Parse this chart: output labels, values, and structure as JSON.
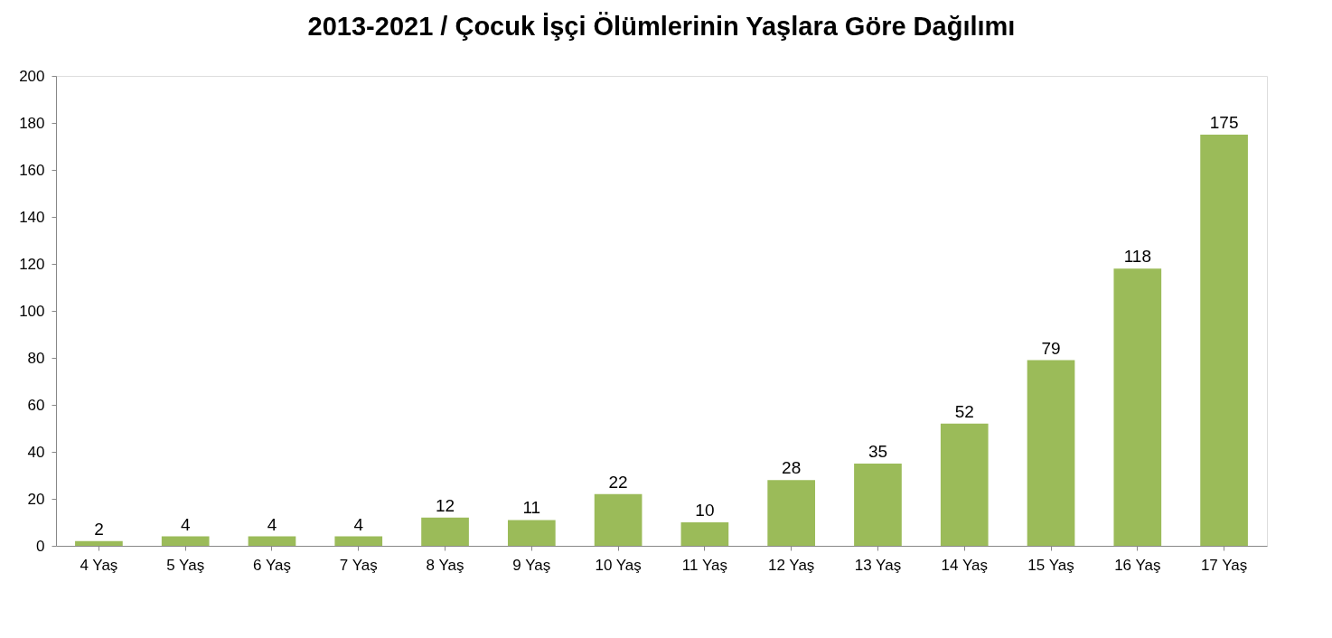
{
  "chart_data": {
    "type": "bar",
    "title": "2013-2021 / Çocuk İşçi Ölümlerinin Yaşlara Göre Dağılımı",
    "categories": [
      "4 Yaş",
      "5 Yaş",
      "6 Yaş",
      "7 Yaş",
      "8 Yaş",
      "9 Yaş",
      "10 Yaş",
      "11 Yaş",
      "12 Yaş",
      "13 Yaş",
      "14 Yaş",
      "15 Yaş",
      "16 Yaş",
      "17 Yaş"
    ],
    "values": [
      2,
      4,
      4,
      4,
      12,
      11,
      22,
      10,
      28,
      35,
      52,
      79,
      118,
      175
    ],
    "color": "#9bbb59",
    "ylim": [
      0,
      200
    ],
    "yticks": [
      0,
      20,
      40,
      60,
      80,
      100,
      120,
      140,
      160,
      180,
      200
    ],
    "data_labels": true
  }
}
